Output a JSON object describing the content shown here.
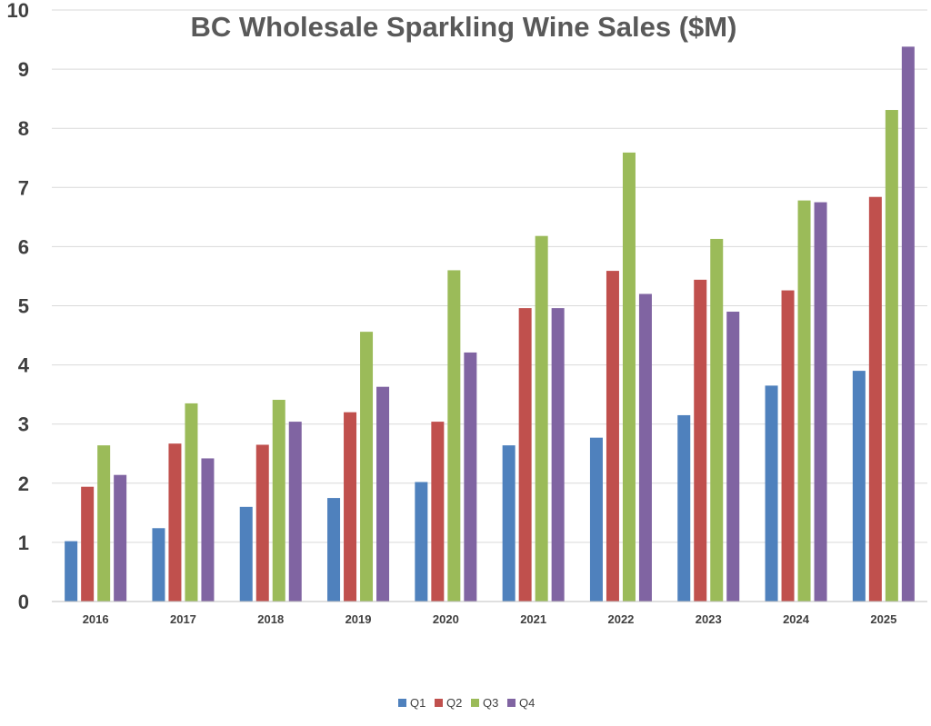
{
  "chart_data": {
    "type": "bar",
    "title": "BC Wholesale Sparkling Wine Sales ($M)",
    "xlabel": "",
    "ylabel": "",
    "categories": [
      "2016",
      "2017",
      "2018",
      "2019",
      "2020",
      "2021",
      "2022",
      "2023",
      "2024",
      "2025"
    ],
    "ylim": [
      0,
      10
    ],
    "yticks": [
      0,
      1,
      2,
      3,
      4,
      5,
      6,
      7,
      8,
      9,
      10
    ],
    "grid": true,
    "legend_position": "bottom",
    "series": [
      {
        "name": "Q1",
        "color": "#4f81bd",
        "values": [
          1.02,
          1.24,
          1.6,
          1.75,
          2.02,
          2.64,
          2.77,
          3.15,
          3.65,
          3.9
        ]
      },
      {
        "name": "Q2",
        "color": "#c0504d",
        "values": [
          1.94,
          2.67,
          2.65,
          3.2,
          3.04,
          4.96,
          5.59,
          5.44,
          5.26,
          6.84
        ]
      },
      {
        "name": "Q3",
        "color": "#9bbb59",
        "values": [
          2.64,
          3.35,
          3.41,
          4.56,
          5.6,
          6.18,
          7.59,
          6.13,
          6.78,
          8.31
        ]
      },
      {
        "name": "Q4",
        "color": "#8064a2",
        "values": [
          2.14,
          2.42,
          3.04,
          3.63,
          4.21,
          4.96,
          5.2,
          4.9,
          6.75,
          9.38
        ]
      }
    ]
  }
}
